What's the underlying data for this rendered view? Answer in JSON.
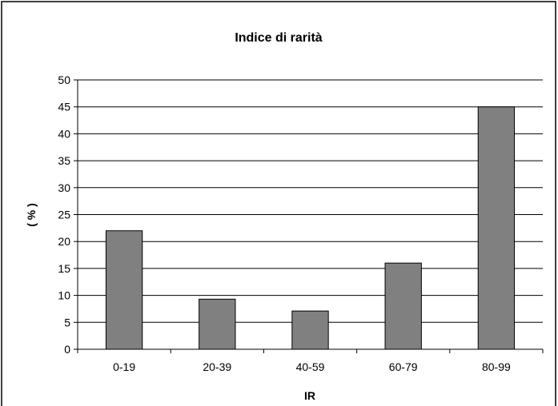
{
  "chart_data": {
    "type": "bar",
    "title": "Indice di rarità",
    "xlabel": "IR",
    "ylabel": "( % )",
    "categories": [
      "0-19",
      "20-39",
      "40-59",
      "60-79",
      "80-99"
    ],
    "values": [
      22,
      9.3,
      7.1,
      16,
      45
    ],
    "ylim": [
      0,
      50
    ],
    "yticks": [
      0,
      5,
      10,
      15,
      20,
      25,
      30,
      35,
      40,
      45,
      50
    ],
    "grid": true,
    "legend": "none",
    "colors": {
      "bar": "#808080",
      "bar_stroke": "#000000",
      "gridline": "#000000",
      "background": "#ffffff"
    }
  }
}
